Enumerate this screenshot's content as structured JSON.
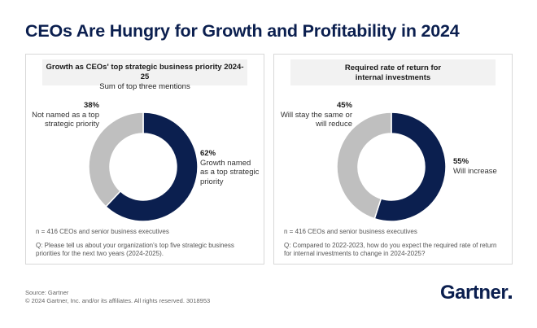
{
  "title": "CEOs Are Hungry for Growth and Profitability in 2024",
  "chart_data": [
    {
      "type": "pie",
      "title": "Growth as CEOs' top strategic business priority 2024-25",
      "subtitle": "Sum of top three mentions",
      "categories": [
        "Growth named as a top strategic priority",
        "Not named as a top strategic priority"
      ],
      "values": [
        62,
        38
      ],
      "value_labels": [
        "62%",
        "38%"
      ],
      "colors": [
        "#0b1f4f",
        "#bfbfbf"
      ],
      "note_n": "n = 416 CEOs and senior business executives",
      "note_q": "Q: Please tell us about your organization's top five strategic business priorities for the next two years (2024-2025)."
    },
    {
      "type": "pie",
      "title": "Required rate of return for internal investments",
      "subtitle": "",
      "categories": [
        "Will increase",
        "Will stay the same or will reduce"
      ],
      "values": [
        55,
        45
      ],
      "value_labels": [
        "55%",
        "45%"
      ],
      "colors": [
        "#0b1f4f",
        "#bfbfbf"
      ],
      "note_n": "n = 416 CEOs and senior business executives",
      "note_q": "Q: Compared to 2022-2023, how do you expect the required rate of return for internal investments to change in 2024-2025?"
    }
  ],
  "source": "Source: Gartner",
  "copyright": "© 2024 Gartner, Inc. and/or its affiliates. All rights reserved. 3018953",
  "logo_text": "Gartner"
}
